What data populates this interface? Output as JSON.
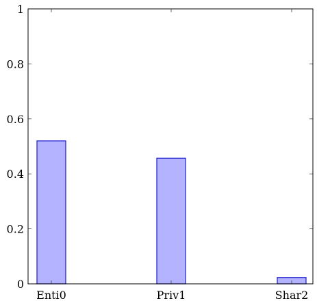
{
  "chart_data": {
    "type": "bar",
    "title": "",
    "xlabel": "",
    "ylabel": "",
    "categories": [
      "Enti0",
      "Priv1",
      "Shar2"
    ],
    "values": [
      0.52,
      0.457,
      0.023
    ],
    "ylim": [
      0,
      1
    ],
    "y_ticks": [
      0,
      0.2,
      0.4,
      0.6,
      0.8,
      1
    ],
    "y_tick_labels": [
      "0",
      "0.2",
      "0.4",
      "0.6",
      "0.8",
      "1"
    ],
    "grid": false,
    "legend": "none",
    "colors": {
      "bar_fill": "#b3b3ff",
      "bar_stroke": "#1a1acc",
      "axis": "#000000"
    }
  }
}
